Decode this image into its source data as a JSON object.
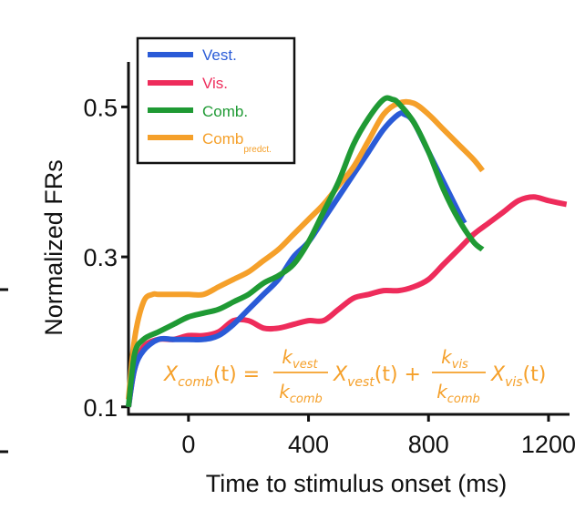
{
  "chart_data": {
    "type": "line",
    "xlabel": "Time to stimulus onset (ms)",
    "ylabel": "Normalized FRs",
    "xlim": [
      -200,
      1270
    ],
    "ylim": [
      0.09,
      0.56
    ],
    "xticks": [
      0,
      400,
      800,
      1200
    ],
    "xtick_labels": [
      "0",
      "400",
      "800",
      "1200"
    ],
    "yticks": [
      0.1,
      0.3,
      0.5
    ],
    "ytick_labels": [
      "0.1",
      "0.3",
      "0.5"
    ],
    "legend": {
      "position": "top-left",
      "entries": [
        {
          "label": "Vest.",
          "subscript": "",
          "color": "#2a5bd7"
        },
        {
          "label": "Vis.",
          "subscript": "",
          "color": "#ee2c5b"
        },
        {
          "label": "Comb.",
          "subscript": "",
          "color": "#1f9a34"
        },
        {
          "label": "Comb",
          "subscript": "predct.",
          "color": "#f5a02a"
        }
      ]
    },
    "equation": {
      "lhs": "X",
      "lhs_sub": "comb",
      "lhs_arg": "(t) =",
      "frac1_num": "k",
      "frac1_num_sub": "vest",
      "frac1_den": "k",
      "frac1_den_sub": "comb",
      "term1": "X",
      "term1_sub": "vest",
      "term1_arg": "(t) +",
      "frac2_num": "k",
      "frac2_num_sub": "vis",
      "frac2_den": "k",
      "frac2_den_sub": "comb",
      "term2": "X",
      "term2_sub": "vis",
      "term2_arg": "(t)",
      "color": "#f5a02a"
    },
    "series": [
      {
        "name": "Vest.",
        "color": "#2a5bd7",
        "x": [
          -200,
          -180,
          -150,
          -100,
          -50,
          0,
          50,
          100,
          150,
          200,
          250,
          300,
          350,
          400,
          450,
          500,
          550,
          600,
          650,
          700,
          720,
          750,
          800,
          850,
          900,
          920
        ],
        "y": [
          0.1,
          0.15,
          0.175,
          0.19,
          0.19,
          0.19,
          0.19,
          0.195,
          0.21,
          0.23,
          0.25,
          0.27,
          0.3,
          0.32,
          0.35,
          0.38,
          0.41,
          0.44,
          0.47,
          0.49,
          0.49,
          0.48,
          0.44,
          0.4,
          0.36,
          0.345
        ]
      },
      {
        "name": "Vis.",
        "color": "#ee2c5b",
        "x": [
          -200,
          -180,
          -150,
          -100,
          -50,
          0,
          50,
          100,
          150,
          200,
          250,
          300,
          350,
          400,
          450,
          500,
          550,
          600,
          650,
          700,
          750,
          800,
          850,
          900,
          950,
          1000,
          1050,
          1100,
          1150,
          1200,
          1260
        ],
        "y": [
          0.1,
          0.15,
          0.18,
          0.19,
          0.19,
          0.195,
          0.195,
          0.2,
          0.215,
          0.215,
          0.205,
          0.205,
          0.21,
          0.215,
          0.215,
          0.23,
          0.245,
          0.25,
          0.255,
          0.255,
          0.26,
          0.27,
          0.29,
          0.31,
          0.33,
          0.345,
          0.36,
          0.375,
          0.38,
          0.375,
          0.37
        ]
      },
      {
        "name": "Comb.",
        "color": "#1f9a34",
        "x": [
          -200,
          -180,
          -150,
          -100,
          -50,
          0,
          50,
          100,
          150,
          200,
          250,
          300,
          350,
          400,
          450,
          500,
          550,
          600,
          650,
          680,
          700,
          750,
          800,
          850,
          900,
          950,
          980
        ],
        "y": [
          0.1,
          0.17,
          0.19,
          0.2,
          0.21,
          0.22,
          0.225,
          0.23,
          0.24,
          0.25,
          0.265,
          0.275,
          0.29,
          0.32,
          0.36,
          0.4,
          0.45,
          0.485,
          0.51,
          0.51,
          0.505,
          0.48,
          0.44,
          0.39,
          0.35,
          0.32,
          0.31
        ]
      },
      {
        "name": "Comb predct.",
        "color": "#f5a02a",
        "x": [
          -200,
          -180,
          -150,
          -120,
          -100,
          -50,
          0,
          50,
          100,
          150,
          200,
          250,
          300,
          350,
          400,
          450,
          500,
          550,
          600,
          650,
          700,
          750,
          800,
          850,
          900,
          950,
          980
        ],
        "y": [
          0.11,
          0.19,
          0.24,
          0.25,
          0.25,
          0.25,
          0.25,
          0.25,
          0.26,
          0.27,
          0.28,
          0.295,
          0.31,
          0.33,
          0.35,
          0.37,
          0.395,
          0.42,
          0.455,
          0.49,
          0.505,
          0.505,
          0.49,
          0.47,
          0.45,
          0.43,
          0.415
        ]
      }
    ]
  }
}
